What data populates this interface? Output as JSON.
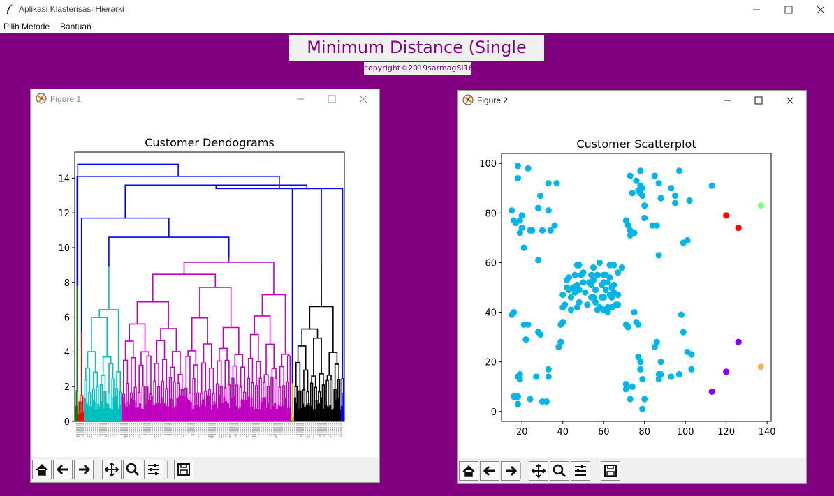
{
  "app": {
    "title": "Aplikasi Klasterisasi Hierarki",
    "icon": "feather-icon"
  },
  "menu": {
    "items": [
      {
        "label": "Pilih Metode"
      },
      {
        "label": "Bantuan"
      }
    ]
  },
  "header": {
    "title": "Minimum Distance (Single Link)",
    "copyright": "copyright©2019sarmagSI16"
  },
  "colors": {
    "background": "#800080",
    "title_text": "#800080",
    "scatter_main": "#00b4e8"
  },
  "figure1": {
    "window_title": "Figure 1",
    "window_title_color": "#888888",
    "toolbar": [
      "home-icon",
      "back-arrow-icon",
      "forward-arrow-icon",
      "pan-icon",
      "zoom-icon",
      "configure-icon",
      "save-icon"
    ]
  },
  "figure2": {
    "window_title": "Figure 2",
    "window_title_color": "#000000",
    "toolbar": [
      "home-icon",
      "back-arrow-icon",
      "forward-arrow-icon",
      "pan-icon",
      "zoom-icon",
      "configure-icon",
      "save-icon"
    ]
  },
  "chart_data": [
    {
      "type": "dendrogram",
      "title": "Customer Dendograms",
      "xlabel": "",
      "ylabel": "",
      "ylim": [
        0,
        15.5
      ],
      "yticks": [
        0,
        2,
        4,
        6,
        8,
        10,
        12,
        14
      ],
      "grid": false,
      "clusters": [
        {
          "color": "#007f00",
          "height": 7.8
        },
        {
          "color": "#ff0000",
          "height": 5.1
        },
        {
          "color": "#00bfbf",
          "height": 8.9
        },
        {
          "color": "#bf00bf",
          "height": 9.4
        },
        {
          "color": "#bfbf00",
          "height": 2.2
        },
        {
          "color": "#000000",
          "height": 9.0
        },
        {
          "color": "#0000ff",
          "height": 10.6
        }
      ],
      "link_color": "#0000ff",
      "top_merge_heights": [
        14.8,
        14.1,
        13.6,
        13.4,
        11.7,
        10.6
      ]
    },
    {
      "type": "scatter",
      "title": "Customer Scatterplot",
      "xlabel": "",
      "ylabel": "",
      "xlim": [
        10,
        142
      ],
      "ylim": [
        -4,
        104
      ],
      "xticks": [
        20,
        40,
        60,
        80,
        100,
        120,
        140
      ],
      "yticks": [
        0,
        20,
        40,
        60,
        80,
        100
      ],
      "grid": false,
      "series": [
        {
          "color": "#00b4e8",
          "points": [
            [
              15,
              39
            ],
            [
              16,
              40
            ],
            [
              16,
              6
            ],
            [
              17,
              6
            ],
            [
              18,
              6
            ],
            [
              18,
              3
            ],
            [
              18,
              14
            ],
            [
              19,
              15
            ],
            [
              19,
              13
            ],
            [
              21,
              35
            ],
            [
              22,
              29
            ],
            [
              23,
              35
            ],
            [
              24,
              5
            ],
            [
              27,
              14
            ],
            [
              28,
              32
            ],
            [
              29,
              31
            ],
            [
              30,
              4
            ],
            [
              32,
              4
            ],
            [
              33,
              14
            ],
            [
              33,
              17
            ],
            [
              38,
              26
            ],
            [
              39,
              28
            ],
            [
              39,
              35
            ],
            [
              40,
              36
            ],
            [
              40,
              42
            ],
            [
              40,
              47
            ],
            [
              41,
              43
            ],
            [
              42,
              50
            ],
            [
              42,
              53
            ],
            [
              43,
              49
            ],
            [
              43,
              54
            ],
            [
              44,
              46
            ],
            [
              44,
              41
            ],
            [
              45,
              50
            ],
            [
              46,
              48
            ],
            [
              46,
              55
            ],
            [
              47,
              42
            ],
            [
              47,
              51
            ],
            [
              47,
              59
            ],
            [
              48,
              44
            ],
            [
              48,
              49
            ],
            [
              48,
              59
            ],
            [
              49,
              55
            ],
            [
              50,
              52
            ],
            [
              50,
              56
            ],
            [
              51,
              48
            ],
            [
              52,
              43
            ],
            [
              53,
              52
            ],
            [
              54,
              51
            ],
            [
              54,
              46
            ],
            [
              54,
              55
            ],
            [
              55,
              58
            ],
            [
              55,
              53
            ],
            [
              55,
              46
            ],
            [
              56,
              49
            ],
            [
              56,
              44
            ],
            [
              57,
              55
            ],
            [
              57,
              41
            ],
            [
              58,
              42
            ],
            [
              58,
              60
            ],
            [
              59,
              46
            ],
            [
              59,
              51
            ],
            [
              60,
              46
            ],
            [
              60,
              52
            ],
            [
              60,
              55
            ],
            [
              60,
              41
            ],
            [
              61,
              55
            ],
            [
              61,
              49
            ],
            [
              62,
              40
            ],
            [
              62,
              42
            ],
            [
              62,
              52
            ],
            [
              63,
              47
            ],
            [
              63,
              54
            ],
            [
              63,
              59
            ],
            [
              64,
              42
            ],
            [
              64,
              46
            ],
            [
              64,
              50
            ],
            [
              65,
              48
            ],
            [
              65,
              51
            ],
            [
              65,
              59
            ],
            [
              66,
              43
            ],
            [
              67,
              43
            ],
            [
              67,
              47
            ],
            [
              67,
              56
            ],
            [
              69,
              58
            ],
            [
              71,
              35
            ],
            [
              71,
              11
            ],
            [
              71,
              9
            ],
            [
              72,
              34
            ],
            [
              73,
              5
            ],
            [
              74,
              10
            ],
            [
              75,
              40
            ],
            [
              76,
              36
            ],
            [
              77,
              35
            ],
            [
              77,
              22
            ],
            [
              78,
              20
            ],
            [
              78,
              17
            ],
            [
              79,
              1
            ],
            [
              79,
              13
            ],
            [
              80,
              5
            ],
            [
              85,
              26
            ],
            [
              86,
              28
            ],
            [
              87,
              13
            ],
            [
              87,
              15
            ],
            [
              88,
              15
            ],
            [
              88,
              20
            ],
            [
              93,
              14
            ],
            [
              97,
              15
            ],
            [
              98,
              39
            ],
            [
              99,
              32
            ],
            [
              101,
              24
            ],
            [
              103,
              23
            ],
            [
              103,
              17
            ],
            [
              15,
              81
            ],
            [
              16,
              77
            ],
            [
              17,
              76
            ],
            [
              18,
              94
            ],
            [
              18,
              99
            ],
            [
              19,
              72
            ],
            [
              19,
              77
            ],
            [
              20,
              79
            ],
            [
              20,
              74
            ],
            [
              21,
              66
            ],
            [
              23,
              98
            ],
            [
              24,
              73
            ],
            [
              25,
              73
            ],
            [
              28,
              61
            ],
            [
              28,
              82
            ],
            [
              29,
              87
            ],
            [
              30,
              73
            ],
            [
              33,
              92
            ],
            [
              33,
              81
            ],
            [
              34,
              73
            ],
            [
              36,
              75
            ],
            [
              37,
              92
            ],
            [
              71,
              77
            ],
            [
              72,
              75
            ],
            [
              73,
              73
            ],
            [
              73,
              71
            ],
            [
              73,
              95
            ],
            [
              74,
              88
            ],
            [
              75,
              72
            ],
            [
              76,
              93
            ],
            [
              77,
              89
            ],
            [
              78,
              97
            ],
            [
              78,
              91
            ],
            [
              78,
              88
            ],
            [
              79,
              87
            ],
            [
              79,
              90
            ],
            [
              80,
              83
            ],
            [
              80,
              78
            ],
            [
              84,
              75
            ],
            [
              85,
              95
            ],
            [
              86,
              75
            ],
            [
              87,
              63
            ],
            [
              87,
              92
            ],
            [
              88,
              86
            ],
            [
              93,
              90
            ],
            [
              95,
              87
            ],
            [
              95,
              84
            ],
            [
              97,
              97
            ],
            [
              99,
              68
            ],
            [
              101,
              69
            ],
            [
              102,
              85
            ],
            [
              113,
              91
            ]
          ]
        },
        {
          "color": "#ff0000",
          "points": [
            [
              120,
              79
            ],
            [
              126,
              74
            ]
          ]
        },
        {
          "color": "#80ff80",
          "points": [
            [
              137,
              83
            ]
          ]
        },
        {
          "color": "#8000ff",
          "points": [
            [
              113,
              8
            ],
            [
              120,
              16
            ],
            [
              126,
              28
            ]
          ]
        },
        {
          "color": "#ffb060",
          "points": [
            [
              137,
              18
            ]
          ]
        }
      ]
    }
  ]
}
